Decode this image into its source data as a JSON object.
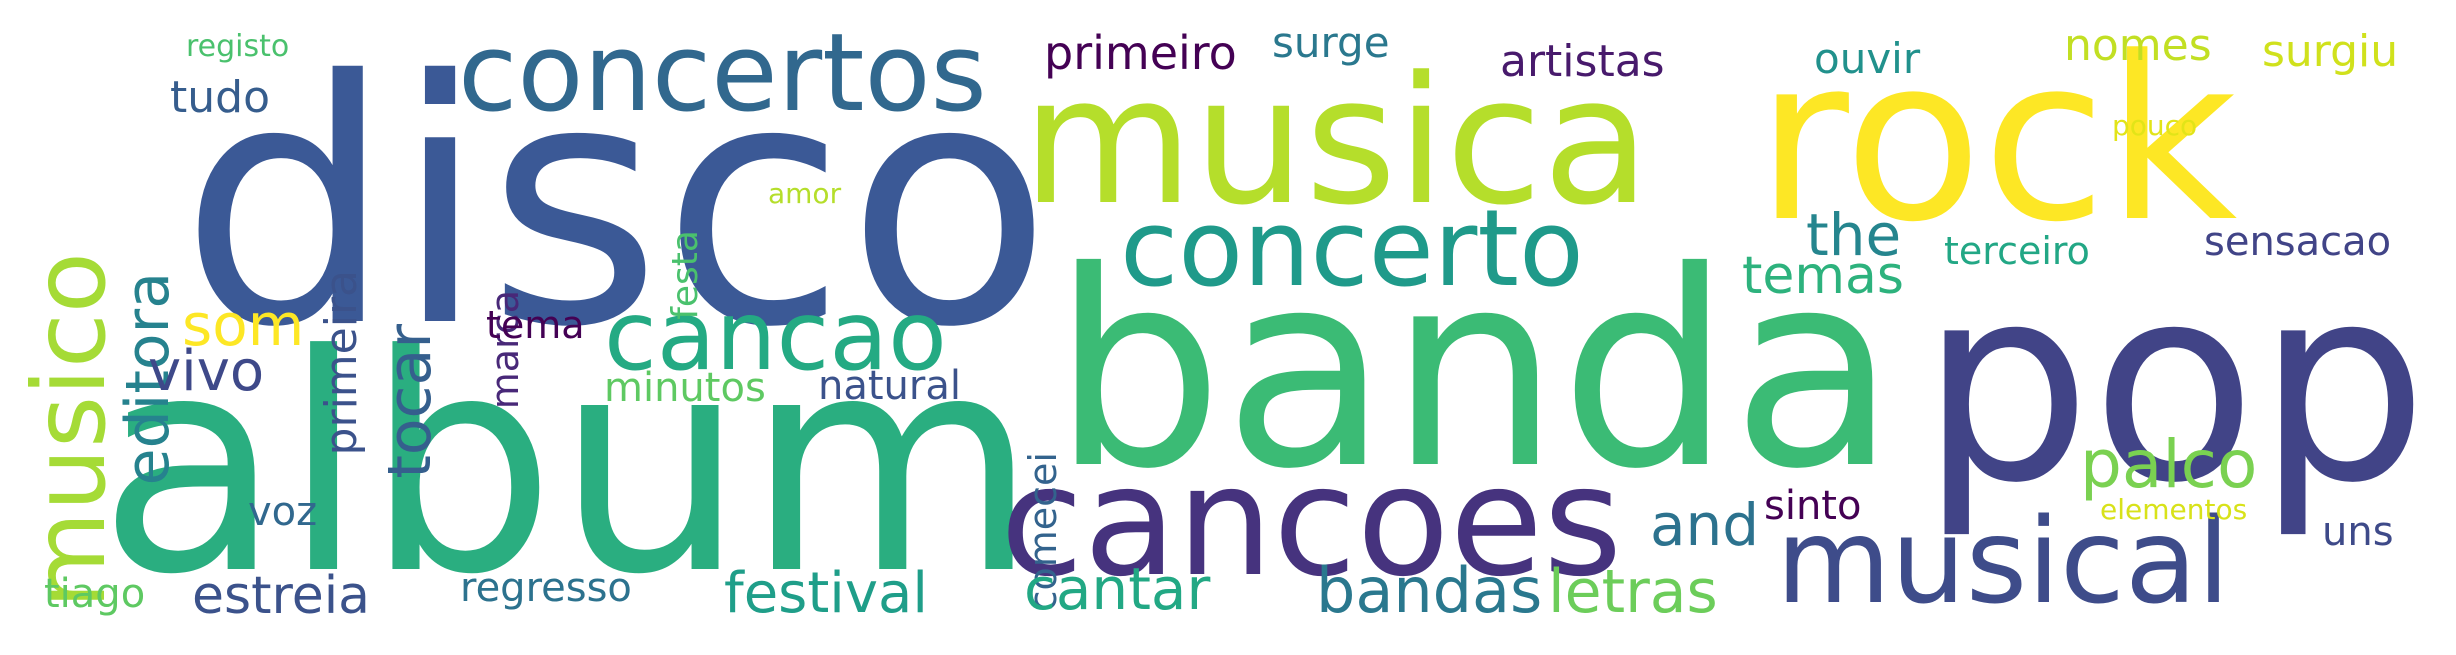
{
  "words": [
    {
      "text": "disco",
      "color": "#3b5996",
      "orientation": "horizontal"
    },
    {
      "text": "album",
      "color": "#2aae80",
      "orientation": "horizontal"
    },
    {
      "text": "banda",
      "color": "#3bbb75",
      "orientation": "horizontal"
    },
    {
      "text": "pop",
      "color": "#414487",
      "orientation": "horizontal"
    },
    {
      "text": "musica",
      "color": "#b5de2b",
      "orientation": "horizontal"
    },
    {
      "text": "rock",
      "color": "#fde725",
      "orientation": "horizontal"
    },
    {
      "text": "cancoes",
      "color": "#46337e",
      "orientation": "horizontal"
    },
    {
      "text": "musical",
      "color": "#3e4c8a",
      "orientation": "horizontal"
    },
    {
      "text": "concertos",
      "color": "#31688e",
      "orientation": "horizontal"
    },
    {
      "text": "concerto",
      "color": "#1f9a8a",
      "orientation": "horizontal"
    },
    {
      "text": "cancao",
      "color": "#24aa83",
      "orientation": "horizontal"
    },
    {
      "text": "musico",
      "color": "#a5db36",
      "orientation": "vertical"
    },
    {
      "text": "editora",
      "color": "#26828e",
      "orientation": "vertical"
    },
    {
      "text": "tocar",
      "color": "#355f8d",
      "orientation": "vertical"
    },
    {
      "text": "primeira",
      "color": "#3b528b",
      "orientation": "vertical"
    },
    {
      "text": "marca",
      "color": "#482878",
      "orientation": "vertical"
    },
    {
      "text": "festa",
      "color": "#4ac16d",
      "orientation": "vertical"
    },
    {
      "text": "comecei",
      "color": "#33638d",
      "orientation": "vertical"
    },
    {
      "text": "palco",
      "color": "#7ad151",
      "orientation": "horizontal"
    },
    {
      "text": "the",
      "color": "#25858e",
      "orientation": "horizontal"
    },
    {
      "text": "temas",
      "color": "#2db27d",
      "orientation": "horizontal"
    },
    {
      "text": "and",
      "color": "#2c728e",
      "orientation": "horizontal"
    },
    {
      "text": "som",
      "color": "#fde725",
      "orientation": "horizontal"
    },
    {
      "text": "vivo",
      "color": "#3e4989",
      "orientation": "horizontal"
    },
    {
      "text": "tudo",
      "color": "#365d8d",
      "orientation": "horizontal"
    },
    {
      "text": "primeiro",
      "color": "#440154",
      "orientation": "horizontal"
    },
    {
      "text": "surge",
      "color": "#2a788e",
      "orientation": "horizontal"
    },
    {
      "text": "artistas",
      "color": "#481a6c",
      "orientation": "horizontal"
    },
    {
      "text": "ouvir",
      "color": "#21918c",
      "orientation": "horizontal"
    },
    {
      "text": "nomes",
      "color": "#c2df23",
      "orientation": "horizontal"
    },
    {
      "text": "surgiu",
      "color": "#d0e11c",
      "orientation": "horizontal"
    },
    {
      "text": "pouco",
      "color": "#e2e418",
      "orientation": "horizontal"
    },
    {
      "text": "amor",
      "color": "#b5de2b",
      "orientation": "horizontal"
    },
    {
      "text": "registo",
      "color": "#4ac16d",
      "orientation": "horizontal"
    },
    {
      "text": "terceiro",
      "color": "#22a785",
      "orientation": "horizontal"
    },
    {
      "text": "sensacao",
      "color": "#414487",
      "orientation": "horizontal"
    },
    {
      "text": "tema",
      "color": "#440154",
      "orientation": "horizontal"
    },
    {
      "text": "minutos",
      "color": "#5ec962",
      "orientation": "horizontal"
    },
    {
      "text": "natural",
      "color": "#3b528b",
      "orientation": "horizontal"
    },
    {
      "text": "voz",
      "color": "#31688e",
      "orientation": "horizontal"
    },
    {
      "text": "sinto",
      "color": "#440154",
      "orientation": "horizontal"
    },
    {
      "text": "elementos",
      "color": "#d8e219",
      "orientation": "horizontal"
    },
    {
      "text": "uns",
      "color": "#3e4a89",
      "orientation": "horizontal"
    },
    {
      "text": "tiago",
      "color": "#5ec962",
      "orientation": "horizontal"
    },
    {
      "text": "estreia",
      "color": "#3b528b",
      "orientation": "horizontal"
    },
    {
      "text": "regresso",
      "color": "#2c728e",
      "orientation": "horizontal"
    },
    {
      "text": "festival",
      "color": "#1f9e89",
      "orientation": "horizontal"
    },
    {
      "text": "cantar",
      "color": "#22a884",
      "orientation": "horizontal"
    },
    {
      "text": "bandas",
      "color": "#2a788e",
      "orientation": "horizontal"
    },
    {
      "text": "letras",
      "color": "#6ccd5a",
      "orientation": "horizontal"
    }
  ]
}
